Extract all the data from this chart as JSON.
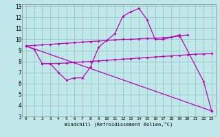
{
  "xlabel": "Windchill (Refroidissement éolien,°C)",
  "bg_color": "#c0e8e8",
  "grid_color": "#98c8c8",
  "line_color": "#bb00bb",
  "xlim": [
    -0.5,
    23.5
  ],
  "ylim": [
    3,
    13.2
  ],
  "xticks": [
    0,
    1,
    2,
    3,
    4,
    5,
    6,
    7,
    8,
    9,
    10,
    11,
    12,
    13,
    14,
    15,
    16,
    17,
    18,
    19,
    20,
    21,
    22,
    23
  ],
  "yticks": [
    3,
    4,
    5,
    6,
    7,
    8,
    9,
    10,
    11,
    12,
    13
  ],
  "line1_x": [
    0,
    1,
    2,
    3,
    4,
    5,
    6,
    7,
    8,
    9,
    11,
    12,
    13,
    14,
    15,
    16,
    17,
    18,
    19,
    22,
    23
  ],
  "line1_y": [
    9.4,
    9.1,
    7.8,
    7.8,
    7.0,
    6.3,
    6.5,
    6.5,
    7.5,
    9.3,
    10.5,
    12.1,
    12.5,
    12.8,
    11.8,
    10.0,
    10.0,
    10.2,
    10.4,
    6.2,
    3.5
  ],
  "line2_x": [
    0,
    23
  ],
  "line2_y": [
    9.4,
    3.5
  ],
  "line3_x": [
    0,
    1,
    2,
    3,
    4,
    5,
    6,
    7,
    8,
    9,
    10,
    11,
    12,
    13,
    14,
    15,
    16,
    17,
    18,
    19,
    20
  ],
  "line3_y": [
    9.4,
    9.45,
    9.5,
    9.55,
    9.6,
    9.65,
    9.7,
    9.75,
    9.8,
    9.85,
    9.9,
    9.95,
    10.0,
    10.0,
    10.05,
    10.1,
    10.1,
    10.15,
    10.2,
    10.3,
    10.4
  ],
  "line4_x": [
    2,
    3,
    4,
    5,
    6,
    7,
    8,
    9,
    10,
    11,
    12,
    13,
    14,
    15,
    16,
    17,
    18,
    19,
    20,
    21,
    22,
    23
  ],
  "line4_y": [
    7.8,
    7.8,
    7.82,
    7.85,
    7.9,
    7.95,
    8.0,
    8.05,
    8.1,
    8.15,
    8.2,
    8.25,
    8.3,
    8.35,
    8.4,
    8.45,
    8.5,
    8.55,
    8.6,
    8.65,
    8.68,
    8.7
  ]
}
